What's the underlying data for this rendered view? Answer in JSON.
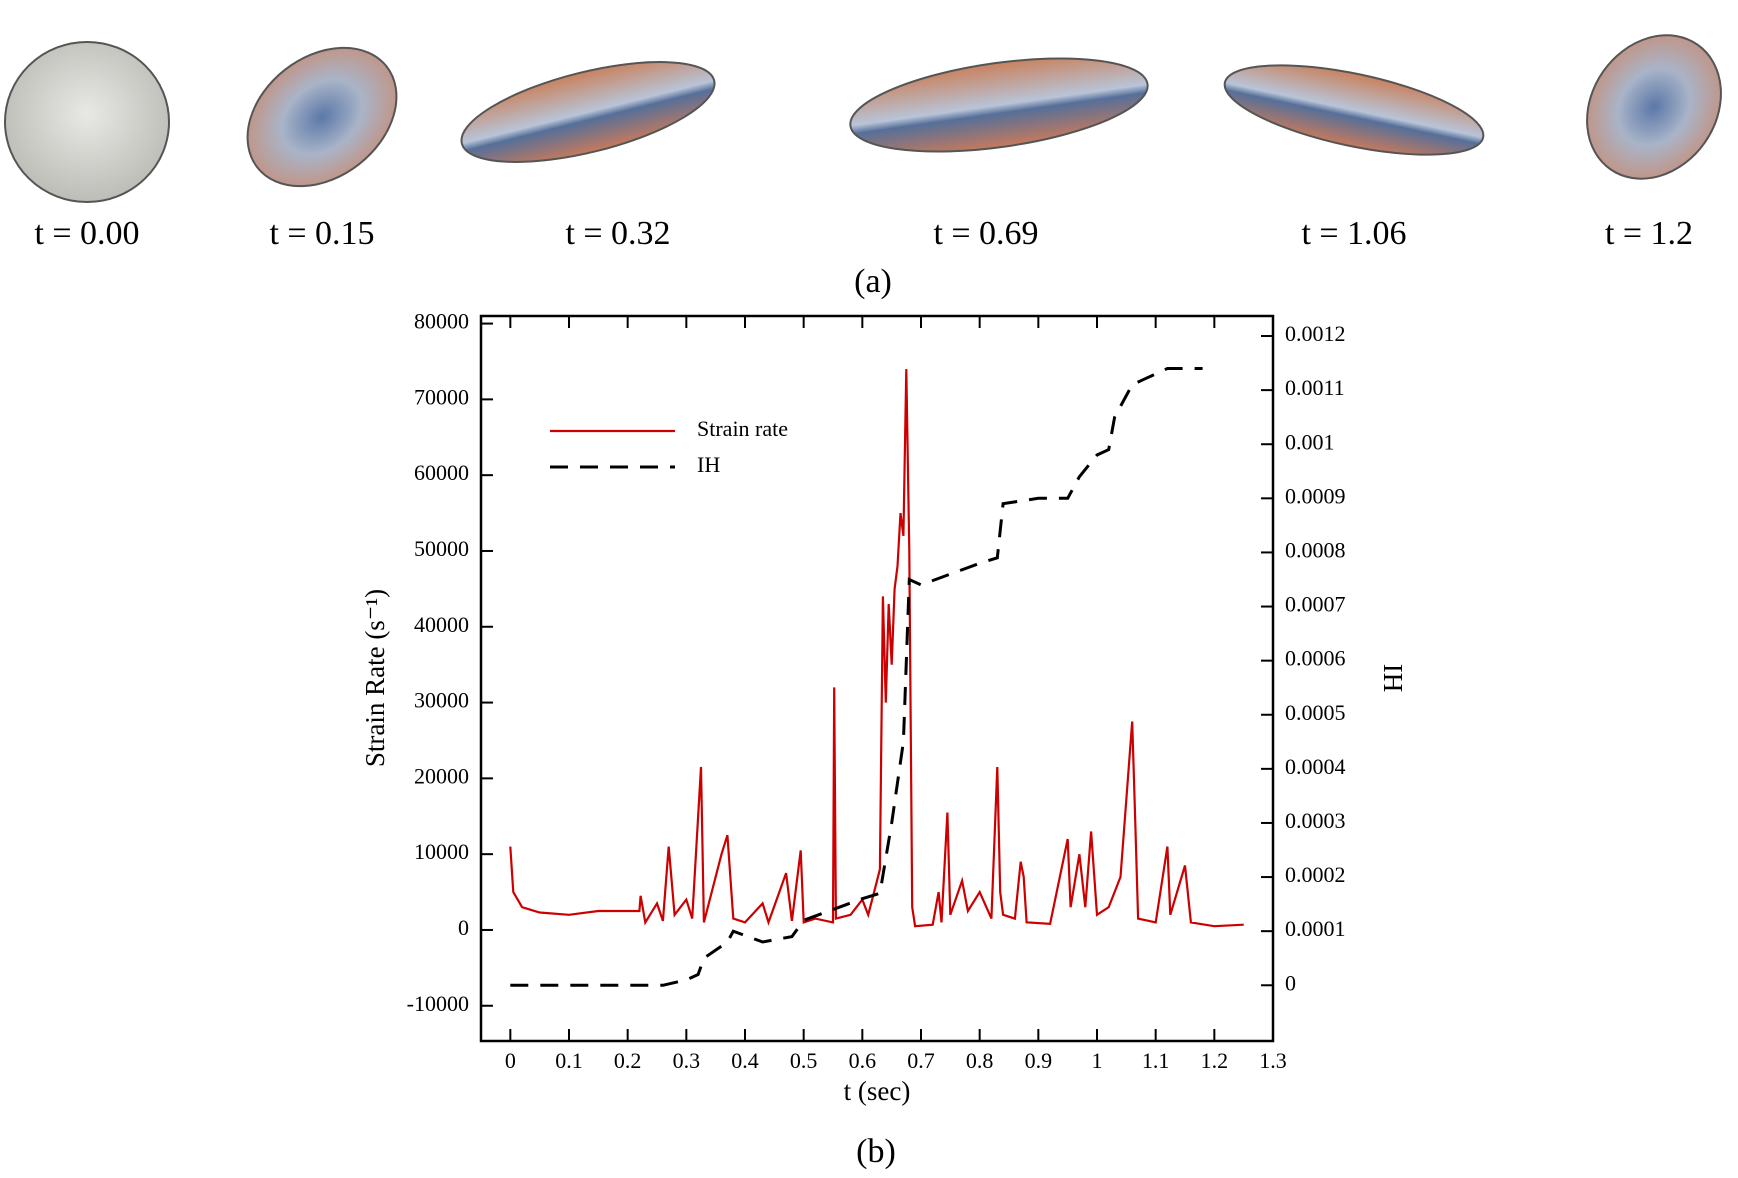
{
  "panel_a": {
    "labels": [
      "t = 0.00",
      "t = 0.15",
      "t = 0.32",
      "t = 0.69",
      "t = 1.06",
      "t = 1.2"
    ],
    "caption": "(a)"
  },
  "caption_b": "(b)",
  "chart_data": {
    "type": "line",
    "xlabel": "t (sec)",
    "ylabel": "Strain Rate (s⁻¹)",
    "y2label": "IH",
    "xlim": [
      -0.05,
      1.3
    ],
    "xticks": [
      0,
      0.1,
      0.2,
      0.3,
      0.4,
      0.5,
      0.6,
      0.7,
      0.8,
      0.9,
      1,
      1.1,
      1.2,
      1.3
    ],
    "ylim": [
      -14650,
      81000
    ],
    "yticks": [
      -10000,
      0,
      10000,
      20000,
      30000,
      40000,
      50000,
      60000,
      70000,
      80000
    ],
    "y2lim": [
      -0.000103,
      0.001237
    ],
    "y2ticks": [
      0,
      0.0001,
      0.0002,
      0.0003,
      0.0004,
      0.0005,
      0.0006,
      0.0007,
      0.0008,
      0.0009,
      0.001,
      0.0011,
      0.0012
    ],
    "legend": "upper-left",
    "series": [
      {
        "name": "Strain rate",
        "color": "#cc0000",
        "dash": false,
        "x": [
          0,
          0.005,
          0.02,
          0.05,
          0.1,
          0.15,
          0.2,
          0.22,
          0.222,
          0.23,
          0.25,
          0.26,
          0.27,
          0.28,
          0.3,
          0.31,
          0.325,
          0.33,
          0.36,
          0.37,
          0.38,
          0.4,
          0.43,
          0.44,
          0.47,
          0.48,
          0.495,
          0.5,
          0.52,
          0.55,
          0.552,
          0.555,
          0.58,
          0.6,
          0.61,
          0.62,
          0.63,
          0.635,
          0.64,
          0.645,
          0.65,
          0.655,
          0.66,
          0.665,
          0.67,
          0.675,
          0.68,
          0.685,
          0.69,
          0.72,
          0.73,
          0.735,
          0.745,
          0.75,
          0.77,
          0.78,
          0.8,
          0.82,
          0.83,
          0.835,
          0.84,
          0.86,
          0.87,
          0.875,
          0.88,
          0.92,
          0.95,
          0.955,
          0.97,
          0.98,
          0.99,
          1.0,
          1.02,
          1.04,
          1.06,
          1.065,
          1.07,
          1.1,
          1.12,
          1.125,
          1.15,
          1.16,
          1.2,
          1.25
        ],
        "values": [
          11000,
          5000,
          3000,
          2300,
          2000,
          2500,
          2500,
          2500,
          4500,
          1000,
          3500,
          1200,
          11000,
          2000,
          4000,
          1500,
          21500,
          1000,
          10000,
          12500,
          1500,
          1000,
          3500,
          1000,
          7500,
          1200,
          10500,
          1000,
          1500,
          1000,
          32000,
          1500,
          2000,
          4000,
          2000,
          5000,
          8000,
          44000,
          30000,
          43000,
          35000,
          45000,
          48000,
          55000,
          52000,
          74000,
          50000,
          3000,
          500,
          700,
          5000,
          1000,
          15500,
          2000,
          6500,
          2500,
          5000,
          1500,
          21500,
          5000,
          2000,
          1500,
          9000,
          7000,
          1000,
          800,
          12000,
          3000,
          10000,
          3000,
          13000,
          2000,
          3000,
          7000,
          27500,
          15000,
          1500,
          1000,
          11000,
          2000,
          8500,
          1000,
          500,
          700
        ]
      },
      {
        "name": "IH",
        "color": "#000000",
        "dash": true,
        "axis": "y2",
        "x": [
          0,
          0.26,
          0.3,
          0.32,
          0.33,
          0.37,
          0.38,
          0.43,
          0.48,
          0.5,
          0.6,
          0.63,
          0.65,
          0.67,
          0.68,
          0.7,
          0.75,
          0.8,
          0.83,
          0.84,
          0.9,
          0.95,
          0.97,
          1.0,
          1.02,
          1.03,
          1.06,
          1.08,
          1.1,
          1.12,
          1.18
        ],
        "values": [
          0,
          0,
          1e-05,
          2e-05,
          5e-05,
          8e-05,
          0.0001,
          8e-05,
          9e-05,
          0.00012,
          0.00016,
          0.00017,
          0.0003,
          0.00045,
          0.00075,
          0.00074,
          0.00076,
          0.00078,
          0.00079,
          0.00089,
          0.0009,
          0.0009,
          0.00094,
          0.00098,
          0.00099,
          0.00105,
          0.00111,
          0.00112,
          0.00113,
          0.00114,
          0.00114
        ]
      }
    ]
  }
}
